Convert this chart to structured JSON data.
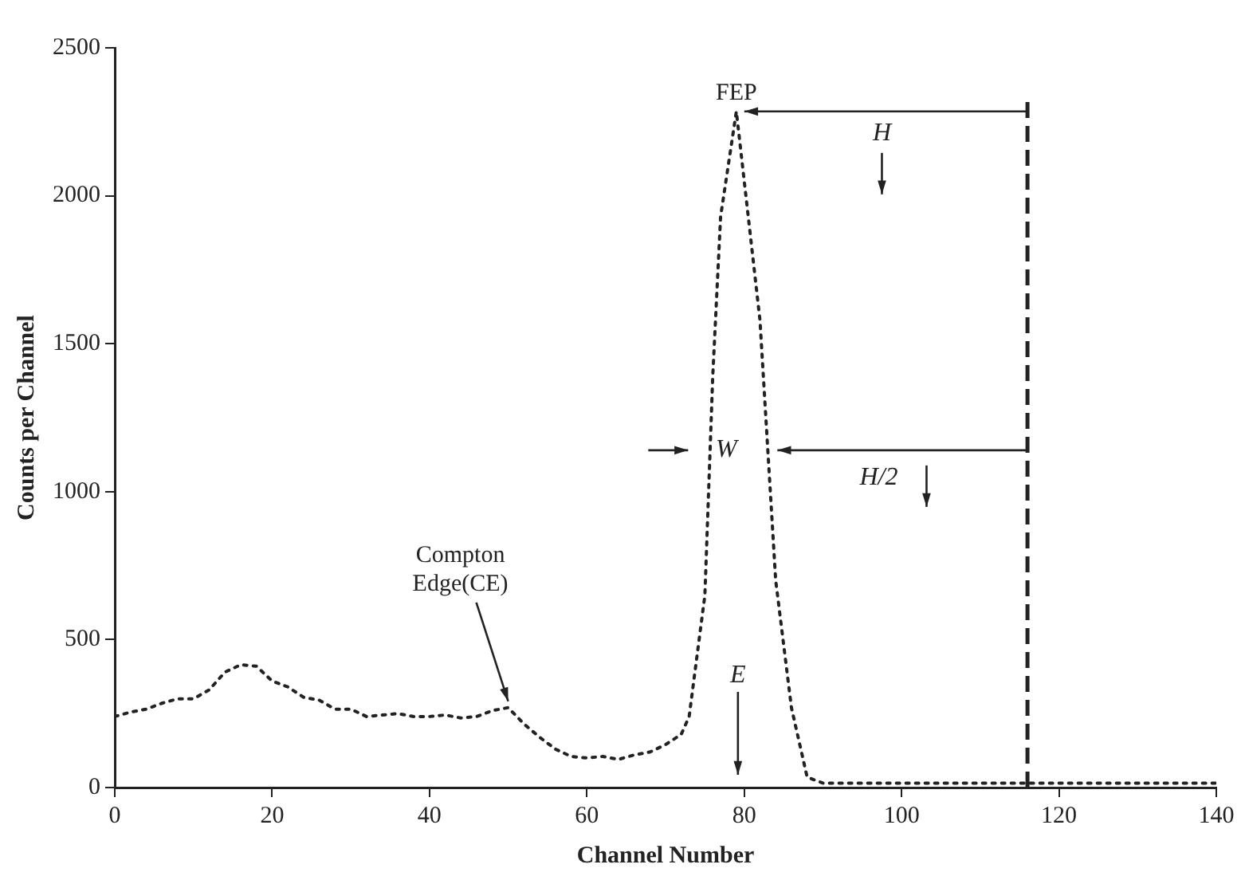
{
  "chart_data": {
    "type": "line",
    "xlabel": "Channel Number",
    "ylabel": "Counts per Channel",
    "x": [
      0,
      2,
      4,
      6,
      8,
      10,
      12,
      14,
      16,
      18,
      20,
      22,
      24,
      26,
      28,
      30,
      32,
      34,
      36,
      38,
      40,
      42,
      44,
      46,
      48,
      50,
      52,
      54,
      56,
      58,
      60,
      62,
      64,
      66,
      68,
      70,
      72,
      73,
      75,
      76,
      77,
      79,
      80,
      82,
      84,
      86,
      88,
      90,
      100,
      110,
      120,
      130,
      140
    ],
    "series": [
      {
        "color": "#222222",
        "values": [
          240,
          255,
          265,
          285,
          300,
          300,
          330,
          390,
          415,
          410,
          360,
          340,
          305,
          295,
          265,
          265,
          240,
          245,
          250,
          240,
          240,
          245,
          235,
          240,
          260,
          270,
          215,
          170,
          130,
          105,
          100,
          105,
          95,
          110,
          120,
          145,
          180,
          240,
          650,
          1390,
          1930,
          2285,
          2050,
          1580,
          700,
          270,
          35,
          15,
          15,
          15,
          15,
          15,
          15
        ]
      }
    ],
    "xlim": [
      0,
      140
    ],
    "xticks": [
      0,
      20,
      40,
      60,
      80,
      100,
      120,
      140
    ],
    "ylim": [
      0,
      2500
    ],
    "yticks": [
      0,
      500,
      1000,
      1500,
      2000,
      2500
    ],
    "grid": false,
    "legend": false,
    "marker": "none",
    "line_style": "dotted",
    "ref_lines": [
      {
        "axis": "x",
        "value": 116,
        "line_style": "dashed",
        "color": "#222222"
      }
    ],
    "annotations": [
      {
        "text": "FEP",
        "x": 79,
        "y": 2285
      },
      "H",
      {
        "text": "W",
        "x": 83,
        "y": 1140
      },
      "H/2",
      "E",
      {
        "text": "Compton Edge(CE)",
        "x": 50,
        "y": 270
      }
    ]
  }
}
